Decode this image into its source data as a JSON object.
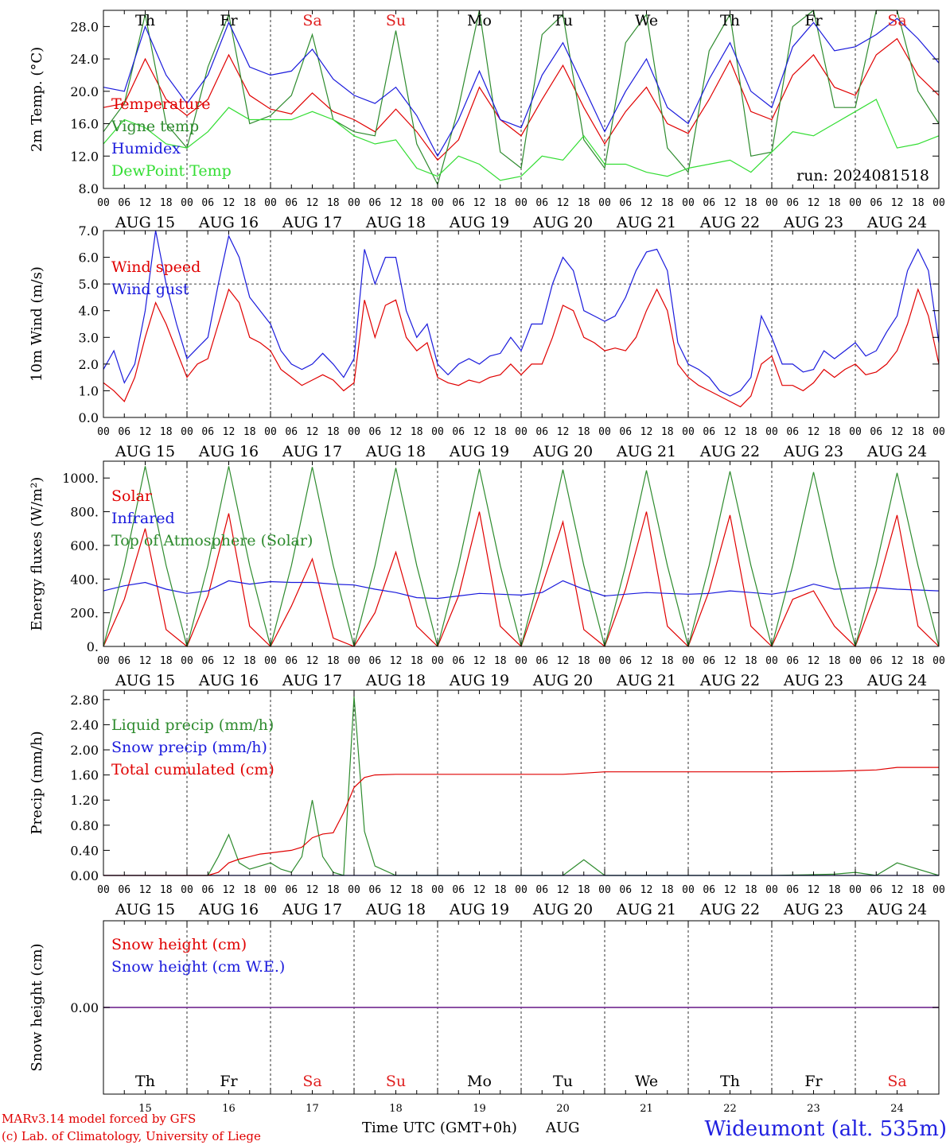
{
  "colors": {
    "temperature": "#e00000",
    "vigne": "#2e8b2e",
    "humidex": "#1a1adc",
    "dewpoint": "#33dd33",
    "weekday": "#000000",
    "weekend": "#e02020",
    "credit": "#e00000",
    "station": "#2020e0",
    "snow_zero": "#7a3a9a"
  },
  "header": {
    "days": [
      {
        "label": "Th",
        "weekend": false
      },
      {
        "label": "Fr",
        "weekend": false
      },
      {
        "label": "Sa",
        "weekend": true
      },
      {
        "label": "Su",
        "weekend": true
      },
      {
        "label": "Mo",
        "weekend": false
      },
      {
        "label": "Tu",
        "weekend": false
      },
      {
        "label": "We",
        "weekend": false
      },
      {
        "label": "Th",
        "weekend": false
      },
      {
        "label": "Fr",
        "weekend": false
      },
      {
        "label": "Sa",
        "weekend": true
      }
    ],
    "dates": [
      "AUG 15",
      "AUG 16",
      "AUG 17",
      "AUG 18",
      "AUG 19",
      "AUG 20",
      "AUG 21",
      "AUG 22",
      "AUG 23",
      "AUG 24"
    ],
    "day_numbers": [
      "15",
      "16",
      "17",
      "18",
      "19",
      "20",
      "21",
      "22",
      "23",
      "24"
    ],
    "hour_ticks": [
      "00",
      "06",
      "12",
      "18"
    ],
    "hour_end": "00"
  },
  "chart_data": [
    {
      "type": "line",
      "ylabel": "2m Temp. (°C)",
      "ylim": [
        8,
        30
      ],
      "yticks": [
        "8.0",
        "12.0",
        "16.0",
        "20.0",
        "24.0",
        "28.0"
      ],
      "ytick_values": [
        8,
        12,
        16,
        20,
        24,
        28
      ],
      "annotation": "run: 2024081518",
      "x_hours": [
        0,
        6,
        12,
        18,
        24,
        30,
        36,
        42,
        48,
        54,
        60,
        66,
        72,
        78,
        84,
        90,
        96,
        102,
        108,
        114,
        120,
        126,
        132,
        138,
        144,
        150,
        156,
        162,
        168,
        174,
        180,
        186,
        192,
        198,
        204,
        210,
        216,
        222,
        228,
        234,
        240
      ],
      "series": [
        {
          "name": "Temperature",
          "color": "#e00000",
          "values": [
            18.0,
            18.5,
            24.0,
            19.0,
            17.0,
            19.0,
            24.5,
            19.5,
            17.8,
            17.2,
            19.8,
            17.5,
            16.5,
            15.0,
            17.8,
            15.0,
            11.5,
            14.0,
            20.5,
            16.5,
            14.5,
            19.0,
            23.2,
            18.0,
            13.5,
            17.5,
            20.5,
            16.0,
            14.8,
            19.0,
            23.8,
            17.5,
            16.5,
            22.0,
            24.5,
            20.5,
            19.5,
            24.5,
            26.5,
            22.0,
            19.5
          ]
        },
        {
          "name": "Vigne temp",
          "color": "#2e8b2e",
          "values": [
            15.0,
            18.5,
            29.5,
            16.0,
            13.0,
            23.0,
            29.5,
            16.0,
            17.0,
            19.5,
            27.0,
            16.5,
            15.0,
            14.5,
            27.5,
            13.5,
            8.5,
            18.0,
            30.0,
            12.5,
            10.5,
            27.0,
            29.5,
            14.0,
            10.5,
            26.0,
            29.5,
            13.0,
            10.0,
            25.0,
            29.5,
            12.0,
            12.5,
            28.0,
            30.0,
            18.0,
            18.0,
            30.0,
            30.0,
            20.0,
            16.0
          ]
        },
        {
          "name": "Humidex",
          "color": "#1a1adc",
          "values": [
            20.5,
            20.0,
            28.0,
            22.0,
            18.5,
            22.0,
            28.5,
            23.0,
            22.0,
            22.5,
            25.2,
            21.5,
            19.5,
            18.5,
            20.5,
            17.0,
            12.0,
            16.5,
            22.5,
            16.5,
            15.5,
            22.0,
            26.0,
            20.5,
            15.0,
            20.0,
            24.0,
            18.0,
            16.0,
            21.5,
            26.0,
            20.0,
            18.0,
            25.5,
            28.5,
            25.0,
            25.5,
            27.0,
            29.0,
            26.5,
            23.5
          ]
        },
        {
          "name": "DewPoint Temp",
          "color": "#33dd33",
          "values": [
            13.5,
            16.5,
            15.5,
            13.5,
            13.0,
            15.0,
            18.0,
            16.5,
            16.5,
            16.5,
            17.5,
            16.5,
            14.5,
            13.5,
            14.0,
            10.5,
            9.5,
            12.0,
            11.0,
            9.0,
            9.5,
            12.0,
            11.5,
            14.5,
            11.0,
            11.0,
            10.0,
            9.5,
            10.5,
            11.0,
            11.5,
            10.0,
            12.5,
            15.0,
            14.5,
            16.0,
            17.5,
            19.0,
            13.0,
            13.5,
            14.5
          ]
        }
      ]
    },
    {
      "type": "line",
      "ylabel": "10m Wind (m/s)",
      "ylim": [
        0,
        7
      ],
      "yticks": [
        "0.0",
        "1.0",
        "2.0",
        "3.0",
        "4.0",
        "5.0",
        "6.0",
        "7.0"
      ],
      "ytick_values": [
        0,
        1,
        2,
        3,
        4,
        5,
        6,
        7
      ],
      "reference_line": 5,
      "x_hours": [
        0,
        3,
        6,
        9,
        12,
        15,
        18,
        21,
        24,
        27,
        30,
        33,
        36,
        39,
        42,
        45,
        48,
        51,
        54,
        57,
        60,
        63,
        66,
        69,
        72,
        75,
        78,
        81,
        84,
        87,
        90,
        93,
        96,
        99,
        102,
        105,
        108,
        111,
        114,
        117,
        120,
        123,
        126,
        129,
        132,
        135,
        138,
        141,
        144,
        147,
        150,
        153,
        156,
        159,
        162,
        165,
        168,
        171,
        174,
        177,
        180,
        183,
        186,
        189,
        192,
        195,
        198,
        201,
        204,
        207,
        210,
        213,
        216,
        219,
        222,
        225,
        228,
        231,
        234,
        237,
        240
      ],
      "series": [
        {
          "name": "Wind speed",
          "color": "#e00000",
          "values": [
            1.3,
            1.0,
            0.6,
            1.5,
            3.0,
            4.3,
            3.5,
            2.5,
            1.5,
            2.0,
            2.2,
            3.5,
            4.8,
            4.3,
            3.0,
            2.8,
            2.5,
            1.8,
            1.5,
            1.2,
            1.4,
            1.6,
            1.4,
            1.0,
            1.3,
            4.4,
            3.0,
            4.2,
            4.4,
            3.0,
            2.5,
            2.8,
            1.5,
            1.3,
            1.2,
            1.4,
            1.3,
            1.5,
            1.6,
            2.0,
            1.6,
            2.0,
            2.0,
            3.0,
            4.2,
            4.0,
            3.0,
            2.8,
            2.5,
            2.6,
            2.5,
            3.0,
            4.0,
            4.8,
            4.0,
            2.0,
            1.5,
            1.2,
            1.0,
            0.8,
            0.6,
            0.4,
            0.8,
            2.0,
            2.3,
            1.2,
            1.2,
            1.0,
            1.3,
            1.8,
            1.5,
            1.8,
            2.0,
            1.6,
            1.7,
            2.0,
            2.5,
            3.5,
            4.8,
            3.8,
            2.0
          ]
        },
        {
          "name": "Wind gust",
          "color": "#1a1adc",
          "values": [
            1.8,
            2.5,
            1.3,
            2.0,
            4.0,
            7.0,
            5.0,
            3.5,
            2.2,
            2.6,
            3.0,
            5.0,
            6.8,
            6.0,
            4.5,
            4.0,
            3.5,
            2.5,
            2.0,
            1.8,
            2.0,
            2.4,
            2.0,
            1.5,
            2.2,
            6.3,
            5.0,
            6.0,
            6.0,
            4.0,
            3.0,
            3.5,
            2.0,
            1.6,
            2.0,
            2.2,
            2.0,
            2.3,
            2.4,
            3.0,
            2.5,
            3.5,
            3.5,
            5.0,
            6.0,
            5.5,
            4.0,
            3.8,
            3.6,
            3.8,
            4.5,
            5.5,
            6.2,
            6.3,
            5.5,
            2.8,
            2.0,
            1.8,
            1.5,
            1.0,
            0.8,
            1.0,
            1.5,
            3.8,
            3.0,
            2.0,
            2.0,
            1.7,
            1.8,
            2.5,
            2.2,
            2.5,
            2.8,
            2.3,
            2.5,
            3.2,
            3.8,
            5.5,
            6.3,
            5.5,
            2.8
          ]
        }
      ]
    },
    {
      "type": "line",
      "ylabel": "Energy fluxes (W/m²)",
      "ylim": [
        0,
        1100
      ],
      "yticks": [
        "0.",
        "200.",
        "400.",
        "600.",
        "800.",
        "1000."
      ],
      "ytick_values": [
        0,
        200,
        400,
        600,
        800,
        1000
      ],
      "x_hours": [
        0,
        6,
        12,
        18,
        24,
        30,
        36,
        42,
        48,
        54,
        60,
        66,
        72,
        78,
        84,
        90,
        96,
        102,
        108,
        114,
        120,
        126,
        132,
        138,
        144,
        150,
        156,
        162,
        168,
        174,
        180,
        186,
        192,
        198,
        204,
        210,
        216,
        222,
        228,
        234,
        240
      ],
      "series": [
        {
          "name": "Solar",
          "color": "#e00000",
          "values": [
            0,
            280,
            700,
            100,
            0,
            300,
            790,
            120,
            0,
            240,
            520,
            50,
            0,
            200,
            560,
            120,
            0,
            300,
            800,
            120,
            0,
            360,
            740,
            100,
            0,
            340,
            800,
            120,
            0,
            330,
            780,
            120,
            0,
            280,
            330,
            120,
            0,
            330,
            780,
            120,
            0
          ]
        },
        {
          "name": "Infrared",
          "color": "#1a1adc",
          "values": [
            330,
            360,
            380,
            340,
            315,
            330,
            390,
            370,
            385,
            380,
            380,
            370,
            365,
            340,
            320,
            290,
            285,
            300,
            315,
            310,
            305,
            320,
            390,
            340,
            300,
            310,
            320,
            315,
            310,
            315,
            330,
            320,
            310,
            330,
            370,
            340,
            345,
            350,
            340,
            335,
            330
          ]
        },
        {
          "name": "Top of Atmosphere (Solar)",
          "color": "#2e8b2e",
          "values": [
            0,
            480,
            1070,
            480,
            0,
            480,
            1070,
            480,
            0,
            480,
            1065,
            480,
            0,
            480,
            1060,
            480,
            0,
            480,
            1055,
            480,
            0,
            480,
            1050,
            480,
            0,
            480,
            1045,
            480,
            0,
            480,
            1040,
            480,
            0,
            480,
            1035,
            480,
            0,
            480,
            1030,
            480,
            0
          ]
        }
      ]
    },
    {
      "type": "line",
      "ylabel": "Precip (mm/h)",
      "ylim": [
        0,
        2.95
      ],
      "yticks": [
        "0.00",
        "0.40",
        "0.80",
        "1.20",
        "1.60",
        "2.00",
        "2.40",
        "2.80"
      ],
      "ytick_values": [
        0,
        0.4,
        0.8,
        1.2,
        1.6,
        2,
        2.4,
        2.8
      ],
      "x_hours": [
        0,
        6,
        12,
        15,
        18,
        21,
        24,
        27,
        30,
        33,
        36,
        39,
        42,
        45,
        48,
        51,
        54,
        57,
        60,
        63,
        66,
        69,
        72,
        75,
        78,
        84,
        96,
        108,
        120,
        126,
        132,
        138,
        144,
        168,
        192,
        210,
        216,
        222,
        228,
        240
      ],
      "series": [
        {
          "name": "Liquid precip (mm/h)",
          "color": "#2e8b2e",
          "values": [
            0,
            0,
            0,
            0,
            0,
            0,
            0,
            0,
            0,
            0.3,
            0.65,
            0.2,
            0.1,
            0.15,
            0.2,
            0.1,
            0.05,
            0.3,
            1.2,
            0.3,
            0.05,
            0,
            2.85,
            0.7,
            0.15,
            0,
            0,
            0,
            0,
            0,
            0,
            0.25,
            0,
            0,
            0,
            0.02,
            0.05,
            0,
            0.2,
            0
          ]
        },
        {
          "name": "Snow precip (mm/h)",
          "color": "#1a1adc",
          "values": [
            0,
            0,
            0,
            0,
            0,
            0,
            0,
            0,
            0,
            0,
            0,
            0,
            0,
            0,
            0,
            0,
            0,
            0,
            0,
            0,
            0,
            0,
            0,
            0,
            0,
            0,
            0,
            0,
            0,
            0,
            0,
            0,
            0,
            0,
            0,
            0,
            0,
            0,
            0,
            0
          ]
        },
        {
          "name": "Total cumulated (cm)",
          "color": "#e00000",
          "values": [
            0,
            0,
            0,
            0,
            0,
            0,
            0,
            0,
            0,
            0.05,
            0.2,
            0.26,
            0.3,
            0.34,
            0.36,
            0.38,
            0.4,
            0.45,
            0.6,
            0.66,
            0.68,
            1.0,
            1.4,
            1.56,
            1.6,
            1.61,
            1.61,
            1.61,
            1.61,
            1.61,
            1.61,
            1.63,
            1.65,
            1.65,
            1.65,
            1.66,
            1.67,
            1.68,
            1.72,
            1.72
          ]
        }
      ]
    },
    {
      "type": "line",
      "ylabel": "Snow height (cm)",
      "ylim": [
        -1,
        1
      ],
      "yticks": [
        "0.00"
      ],
      "ytick_values": [
        0
      ],
      "x_hours": [
        0,
        240
      ],
      "series": [
        {
          "name": "Snow height (cm)",
          "color": "#e00000",
          "values": [
            0,
            0
          ]
        },
        {
          "name": "Snow height (cm W.E.)",
          "color": "#1a1adc",
          "values": [
            0,
            0
          ]
        }
      ]
    }
  ],
  "footer": {
    "xlabel": "Time UTC (GMT+0h)",
    "month": "AUG",
    "credit_line1": "MARv3.14 model forced by GFS",
    "credit_line2": "(c) Lab. of Climatology, University of Liege",
    "station": "Wideumont (alt. 535m)"
  }
}
